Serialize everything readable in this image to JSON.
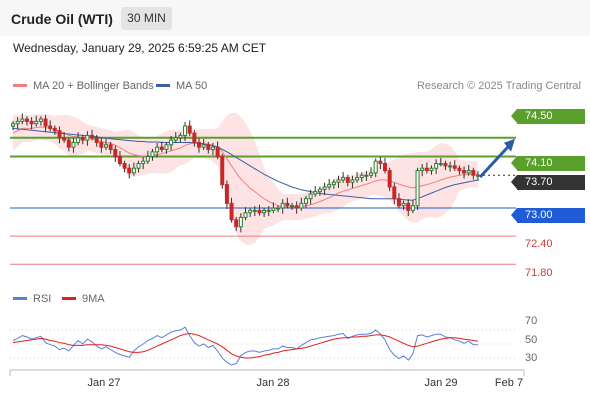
{
  "header": {
    "title": "Crude Oil (WTI)",
    "timeframe": "30 MIN",
    "datetime": "Wednesday, January 29, 2025 6:59:25 AM CET"
  },
  "legend": {
    "ma20": "MA 20 + Bollinger Bands",
    "ma50": "MA 50",
    "credit": "Research © 2025 Trading Central",
    "rsi": "RSI",
    "rsi_ma": "9MA"
  },
  "colors": {
    "ma20": "#f08080",
    "ma50": "#3a5fa8",
    "band_fill": "#fde3e3",
    "up": "#2e7d32",
    "down": "#c62828",
    "resistance": "#5aa02c",
    "support": "#1f5bd6",
    "red_level": "#f07a7a",
    "current": "#333333",
    "arrow": "#2b5ba8",
    "rsi": "#5b7fd6",
    "rsi_ma": "#e02020"
  },
  "chart_data": {
    "type": "candlestick",
    "title": "Crude Oil (WTI)",
    "timeframe": "30 MIN",
    "y_range": [
      71.4,
      75.05
    ],
    "x_labels": [
      "Jan 27",
      "Jan 28",
      "Jan 29",
      "Feb 7"
    ],
    "price_levels": [
      {
        "label": "74.50",
        "value": 74.5,
        "kind": "resistance"
      },
      {
        "label": "74.10",
        "value": 74.1,
        "kind": "resistance"
      },
      {
        "label": "73.70",
        "value": 73.7,
        "kind": "current"
      },
      {
        "label": "73.00",
        "value": 73.0,
        "kind": "support"
      },
      {
        "label": "72.40",
        "value": 72.4,
        "kind": "level"
      },
      {
        "label": "71.80",
        "value": 71.8,
        "kind": "level"
      }
    ],
    "forecast_arrow": {
      "from": 73.66,
      "to": 74.5
    },
    "close": [
      74.8,
      74.85,
      74.9,
      74.85,
      74.8,
      74.85,
      74.9,
      74.75,
      74.7,
      74.65,
      74.5,
      74.45,
      74.3,
      74.4,
      74.5,
      74.45,
      74.55,
      74.5,
      74.4,
      74.3,
      74.35,
      74.25,
      74.1,
      73.95,
      73.85,
      73.75,
      73.85,
      73.95,
      74.0,
      74.1,
      74.2,
      74.3,
      74.25,
      74.35,
      74.45,
      74.5,
      74.55,
      74.75,
      74.6,
      74.4,
      74.3,
      74.35,
      74.25,
      74.3,
      74.1,
      73.5,
      73.1,
      72.75,
      72.6,
      72.8,
      72.9,
      72.95,
      72.95,
      72.9,
      72.95,
      72.95,
      73.0,
      73.0,
      73.1,
      73.05,
      73.05,
      73.0,
      73.1,
      73.2,
      73.3,
      73.35,
      73.4,
      73.45,
      73.5,
      73.55,
      73.6,
      73.65,
      73.55,
      73.6,
      73.65,
      73.7,
      73.7,
      73.75,
      74.0,
      73.95,
      73.8,
      73.45,
      73.2,
      73.05,
      73.1,
      72.95,
      73.05,
      73.8,
      73.85,
      73.8,
      73.85,
      73.95,
      73.95,
      73.9,
      73.9,
      73.85,
      73.8,
      73.75,
      73.8,
      73.7,
      73.7
    ],
    "ma20": [
      74.6,
      74.65,
      74.7,
      74.7,
      74.7,
      74.72,
      74.73,
      74.72,
      74.7,
      74.67,
      74.63,
      74.6,
      74.55,
      74.53,
      74.52,
      74.5,
      74.5,
      74.48,
      74.45,
      74.42,
      74.4,
      74.38,
      74.34,
      74.29,
      74.23,
      74.17,
      74.14,
      74.12,
      74.1,
      74.11,
      74.12,
      74.14,
      74.16,
      74.19,
      74.22,
      74.25,
      74.28,
      74.34,
      74.37,
      74.39,
      74.38,
      74.37,
      74.36,
      74.34,
      74.3,
      74.2,
      74.05,
      73.9,
      73.75,
      73.62,
      73.52,
      73.42,
      73.35,
      73.27,
      73.2,
      73.14,
      73.09,
      73.05,
      73.02,
      73.02,
      73.02,
      73.02,
      73.03,
      73.05,
      73.07,
      73.1,
      73.14,
      73.18,
      73.22,
      73.27,
      73.32,
      73.36,
      73.39,
      73.42,
      73.45,
      73.48,
      73.51,
      73.54,
      73.58,
      73.6,
      73.6,
      73.58,
      73.55,
      73.51,
      73.48,
      73.45,
      73.43,
      73.45,
      73.48,
      73.5,
      73.53,
      73.56,
      73.6,
      73.63,
      73.66,
      73.68,
      73.7,
      73.71,
      73.72,
      73.72,
      73.72
    ],
    "ma50": [
      74.7,
      74.69,
      74.68,
      74.67,
      74.66,
      74.65,
      74.64,
      74.63,
      74.62,
      74.61,
      74.6,
      74.59,
      74.58,
      74.57,
      74.56,
      74.55,
      74.54,
      74.53,
      74.52,
      74.5,
      74.49,
      74.48,
      74.47,
      74.46,
      74.45,
      74.44,
      74.43,
      74.42,
      74.42,
      74.41,
      74.41,
      74.41,
      74.4,
      74.4,
      74.4,
      74.4,
      74.4,
      74.4,
      74.4,
      74.39,
      74.38,
      74.37,
      74.35,
      74.33,
      74.3,
      74.25,
      74.2,
      74.14,
      74.08,
      74.02,
      73.96,
      73.9,
      73.84,
      73.78,
      73.72,
      73.67,
      73.62,
      73.57,
      73.53,
      73.49,
      73.45,
      73.42,
      73.39,
      73.37,
      73.35,
      73.33,
      73.31,
      73.3,
      73.29,
      73.28,
      73.27,
      73.26,
      73.25,
      73.24,
      73.23,
      73.22,
      73.21,
      73.2,
      73.2,
      73.2,
      73.2,
      73.2,
      73.2,
      73.19,
      73.18,
      73.17,
      73.17,
      73.2,
      73.24,
      73.28,
      73.32,
      73.36,
      73.4,
      73.44,
      73.47,
      73.5,
      73.52,
      73.54,
      73.56,
      73.58,
      73.6
    ],
    "rsi": [
      55,
      58,
      62,
      60,
      57,
      59,
      61,
      52,
      49,
      47,
      42,
      44,
      40,
      48,
      55,
      50,
      57,
      53,
      47,
      43,
      46,
      42,
      38,
      35,
      33,
      31,
      40,
      46,
      50,
      55,
      58,
      62,
      59,
      63,
      67,
      69,
      70,
      74,
      62,
      52,
      47,
      50,
      45,
      48,
      40,
      30,
      24,
      20,
      22,
      33,
      38,
      40,
      40,
      38,
      40,
      41,
      43,
      43,
      47,
      45,
      45,
      43,
      48,
      52,
      56,
      57,
      59,
      60,
      61,
      62,
      64,
      65,
      58,
      61,
      63,
      64,
      64,
      65,
      70,
      64,
      56,
      42,
      34,
      29,
      33,
      27,
      36,
      62,
      63,
      60,
      62,
      64,
      64,
      60,
      59,
      56,
      54,
      51,
      54,
      49,
      49
    ],
    "rsi_ma": [
      52,
      53,
      54,
      55,
      56,
      57,
      58,
      57,
      55,
      54,
      52,
      51,
      49,
      48,
      48,
      48,
      49,
      49,
      49,
      49,
      48,
      47,
      45,
      43,
      41,
      39,
      38,
      38,
      39,
      41,
      44,
      47,
      50,
      53,
      56,
      59,
      62,
      64,
      65,
      64,
      62,
      59,
      56,
      53,
      50,
      46,
      41,
      36,
      33,
      31,
      30,
      30,
      31,
      32,
      34,
      35,
      37,
      38,
      40,
      41,
      42,
      43,
      44,
      45,
      47,
      49,
      51,
      53,
      55,
      57,
      58,
      59,
      59,
      60,
      60,
      61,
      61,
      62,
      63,
      63,
      62,
      60,
      57,
      54,
      51,
      48,
      46,
      47,
      49,
      51,
      53,
      55,
      57,
      58,
      59,
      59,
      58,
      57,
      56,
      55,
      54
    ],
    "rsi_ticks": [
      "70",
      "50",
      "30"
    ]
  }
}
